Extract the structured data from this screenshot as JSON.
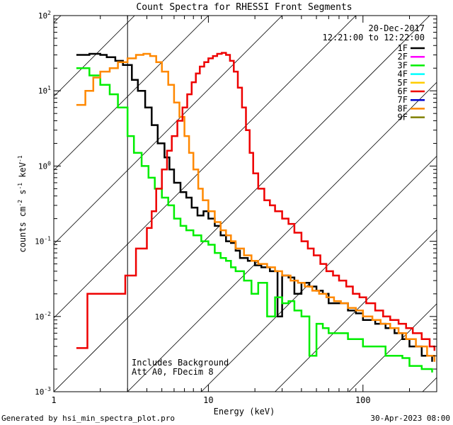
{
  "chart_data": {
    "type": "line",
    "title": "Count Spectra for RHESSI Front Segments",
    "xlabel": "Energy (keV)",
    "ylabel_parts": [
      "counts cm",
      "-2",
      " s",
      "-1",
      " keV",
      "-1"
    ],
    "xscale": "log",
    "yscale": "log",
    "xlim": [
      1,
      300
    ],
    "ylim": [
      0.001,
      100
    ],
    "x_ticks": [
      {
        "value": 1,
        "label": "1"
      },
      {
        "value": 10,
        "label": "10"
      },
      {
        "value": 100,
        "label": "100"
      }
    ],
    "y_ticks": [
      {
        "value": 0.001,
        "base": "10",
        "exp": "-3"
      },
      {
        "value": 0.01,
        "base": "10",
        "exp": "-2"
      },
      {
        "value": 0.1,
        "base": "10",
        "exp": "-1"
      },
      {
        "value": 1,
        "base": "10",
        "exp": "0"
      },
      {
        "value": 10,
        "base": "10",
        "exp": "1"
      },
      {
        "value": 100,
        "base": "10",
        "exp": "2"
      }
    ],
    "date": "20-Dec-2017",
    "time_range": "12:21:00 to 12:22:00",
    "annotation_lines": [
      "Includes Background",
      "Att A0, FDecim 8"
    ],
    "hatched_region_max_energy": 3,
    "legend": [
      {
        "name": "1F",
        "color": "#000000"
      },
      {
        "name": "2F",
        "color": "#ff00ff"
      },
      {
        "name": "3F",
        "color": "#00ee00"
      },
      {
        "name": "4F",
        "color": "#00ffff"
      },
      {
        "name": "5F",
        "color": "#ffcc00"
      },
      {
        "name": "6F",
        "color": "#ee0000"
      },
      {
        "name": "7F",
        "color": "#0000cc"
      },
      {
        "name": "8F",
        "color": "#ff8800"
      },
      {
        "name": "9F",
        "color": "#808000"
      }
    ],
    "series": [
      {
        "name": "1F",
        "color": "#000000",
        "points": [
          [
            1.4,
            30
          ],
          [
            1.7,
            31
          ],
          [
            2.0,
            30
          ],
          [
            2.2,
            28
          ],
          [
            2.5,
            25
          ],
          [
            2.8,
            22
          ],
          [
            3.2,
            14
          ],
          [
            3.5,
            10
          ],
          [
            3.9,
            6
          ],
          [
            4.3,
            3.5
          ],
          [
            4.7,
            2
          ],
          [
            5.2,
            1.3
          ],
          [
            5.6,
            0.9
          ],
          [
            6.0,
            0.6
          ],
          [
            6.6,
            0.45
          ],
          [
            7.2,
            0.38
          ],
          [
            7.8,
            0.28
          ],
          [
            8.5,
            0.22
          ],
          [
            9.3,
            0.25
          ],
          [
            10,
            0.2
          ],
          [
            11,
            0.16
          ],
          [
            12,
            0.12
          ],
          [
            13,
            0.1
          ],
          [
            14,
            0.095
          ],
          [
            15,
            0.075
          ],
          [
            16,
            0.06
          ],
          [
            18,
            0.055
          ],
          [
            20,
            0.048
          ],
          [
            22,
            0.045
          ],
          [
            25,
            0.04
          ],
          [
            28,
            0.01
          ],
          [
            30,
            0.035
          ],
          [
            33,
            0.033
          ],
          [
            36,
            0.02
          ],
          [
            40,
            0.028
          ],
          [
            45,
            0.025
          ],
          [
            50,
            0.022
          ],
          [
            55,
            0.02
          ],
          [
            60,
            0.015
          ],
          [
            70,
            0.015
          ],
          [
            80,
            0.012
          ],
          [
            90,
            0.011
          ],
          [
            100,
            0.009
          ],
          [
            120,
            0.008
          ],
          [
            140,
            0.007
          ],
          [
            160,
            0.006
          ],
          [
            180,
            0.005
          ],
          [
            200,
            0.004
          ],
          [
            240,
            0.003
          ],
          [
            280,
            0.0025
          ]
        ]
      },
      {
        "name": "3F",
        "color": "#00ee00",
        "points": [
          [
            1.4,
            20
          ],
          [
            1.7,
            16
          ],
          [
            2.0,
            12
          ],
          [
            2.3,
            9
          ],
          [
            2.6,
            6
          ],
          [
            3.0,
            2.5
          ],
          [
            3.3,
            1.5
          ],
          [
            3.7,
            1.0
          ],
          [
            4.1,
            0.7
          ],
          [
            4.5,
            0.5
          ],
          [
            5.0,
            0.38
          ],
          [
            5.5,
            0.3
          ],
          [
            6.0,
            0.2
          ],
          [
            6.6,
            0.16
          ],
          [
            7.2,
            0.14
          ],
          [
            8.0,
            0.12
          ],
          [
            9.0,
            0.1
          ],
          [
            10,
            0.09
          ],
          [
            11,
            0.07
          ],
          [
            12,
            0.06
          ],
          [
            13,
            0.055
          ],
          [
            14,
            0.045
          ],
          [
            15,
            0.04
          ],
          [
            17,
            0.03
          ],
          [
            19,
            0.02
          ],
          [
            21,
            0.028
          ],
          [
            24,
            0.01
          ],
          [
            27,
            0.018
          ],
          [
            30,
            0.015
          ],
          [
            33,
            0.016
          ],
          [
            36,
            0.012
          ],
          [
            40,
            0.01
          ],
          [
            45,
            0.003
          ],
          [
            50,
            0.008
          ],
          [
            55,
            0.007
          ],
          [
            60,
            0.006
          ],
          [
            70,
            0.006
          ],
          [
            80,
            0.005
          ],
          [
            90,
            0.005
          ],
          [
            100,
            0.004
          ],
          [
            120,
            0.004
          ],
          [
            140,
            0.003
          ],
          [
            160,
            0.003
          ],
          [
            180,
            0.0028
          ],
          [
            200,
            0.0022
          ],
          [
            240,
            0.002
          ],
          [
            280,
            0.0018
          ]
        ]
      },
      {
        "name": "8F",
        "color": "#ff8800",
        "points": [
          [
            1.4,
            6.5
          ],
          [
            1.6,
            10
          ],
          [
            1.8,
            15
          ],
          [
            2.0,
            18
          ],
          [
            2.3,
            20
          ],
          [
            2.6,
            24
          ],
          [
            3.0,
            27
          ],
          [
            3.4,
            30
          ],
          [
            3.8,
            31
          ],
          [
            4.2,
            29
          ],
          [
            4.6,
            24
          ],
          [
            5.0,
            18
          ],
          [
            5.5,
            12
          ],
          [
            6.0,
            7
          ],
          [
            6.5,
            4.5
          ],
          [
            7.0,
            2.5
          ],
          [
            7.5,
            1.5
          ],
          [
            8.0,
            0.9
          ],
          [
            8.6,
            0.5
          ],
          [
            9.2,
            0.35
          ],
          [
            10,
            0.25
          ],
          [
            11,
            0.18
          ],
          [
            12,
            0.14
          ],
          [
            13,
            0.12
          ],
          [
            14,
            0.1
          ],
          [
            15,
            0.08
          ],
          [
            17,
            0.065
          ],
          [
            19,
            0.055
          ],
          [
            21,
            0.05
          ],
          [
            24,
            0.045
          ],
          [
            27,
            0.04
          ],
          [
            30,
            0.035
          ],
          [
            34,
            0.03
          ],
          [
            38,
            0.028
          ],
          [
            42,
            0.025
          ],
          [
            47,
            0.022
          ],
          [
            52,
            0.02
          ],
          [
            58,
            0.018
          ],
          [
            65,
            0.016
          ],
          [
            72,
            0.015
          ],
          [
            80,
            0.013
          ],
          [
            90,
            0.012
          ],
          [
            100,
            0.01
          ],
          [
            115,
            0.009
          ],
          [
            130,
            0.008
          ],
          [
            150,
            0.007
          ],
          [
            170,
            0.006
          ],
          [
            190,
            0.005
          ],
          [
            220,
            0.004
          ],
          [
            260,
            0.003
          ],
          [
            290,
            0.0025
          ]
        ]
      },
      {
        "name": "6F",
        "color": "#ee0000",
        "points": [
          [
            1.4,
            0.0038
          ],
          [
            1.6,
            0.0038
          ],
          [
            1.65,
            0.02
          ],
          [
            1.8,
            0.02
          ],
          [
            2.0,
            0.02
          ],
          [
            2.4,
            0.02
          ],
          [
            2.8,
            0.02
          ],
          [
            2.9,
            0.035
          ],
          [
            3.2,
            0.035
          ],
          [
            3.4,
            0.08
          ],
          [
            3.7,
            0.08
          ],
          [
            4.0,
            0.15
          ],
          [
            4.3,
            0.25
          ],
          [
            4.6,
            0.5
          ],
          [
            5.0,
            0.9
          ],
          [
            5.4,
            1.6
          ],
          [
            5.8,
            2.5
          ],
          [
            6.3,
            4
          ],
          [
            6.8,
            6
          ],
          [
            7.3,
            9
          ],
          [
            7.8,
            13
          ],
          [
            8.3,
            17
          ],
          [
            8.8,
            21
          ],
          [
            9.4,
            24
          ],
          [
            10,
            27
          ],
          [
            10.7,
            29
          ],
          [
            11.4,
            31
          ],
          [
            12.2,
            32
          ],
          [
            13,
            30
          ],
          [
            13.8,
            25
          ],
          [
            14.6,
            18
          ],
          [
            15.5,
            11
          ],
          [
            16.5,
            6
          ],
          [
            17.5,
            3
          ],
          [
            18.5,
            1.5
          ],
          [
            19.5,
            0.8
          ],
          [
            21,
            0.5
          ],
          [
            23,
            0.35
          ],
          [
            25,
            0.3
          ],
          [
            27,
            0.25
          ],
          [
            30,
            0.2
          ],
          [
            33,
            0.17
          ],
          [
            36,
            0.13
          ],
          [
            40,
            0.1
          ],
          [
            44,
            0.08
          ],
          [
            48,
            0.065
          ],
          [
            53,
            0.05
          ],
          [
            58,
            0.04
          ],
          [
            64,
            0.035
          ],
          [
            70,
            0.03
          ],
          [
            78,
            0.025
          ],
          [
            86,
            0.02
          ],
          [
            95,
            0.018
          ],
          [
            105,
            0.015
          ],
          [
            120,
            0.012
          ],
          [
            135,
            0.01
          ],
          [
            150,
            0.009
          ],
          [
            170,
            0.008
          ],
          [
            190,
            0.007
          ],
          [
            210,
            0.006
          ],
          [
            240,
            0.005
          ],
          [
            270,
            0.004
          ],
          [
            290,
            0.0035
          ]
        ]
      }
    ]
  },
  "footer": {
    "generated_by": "Generated by hsi_min_spectra_plot.pro",
    "timestamp": "30-Apr-2023 08:00"
  }
}
